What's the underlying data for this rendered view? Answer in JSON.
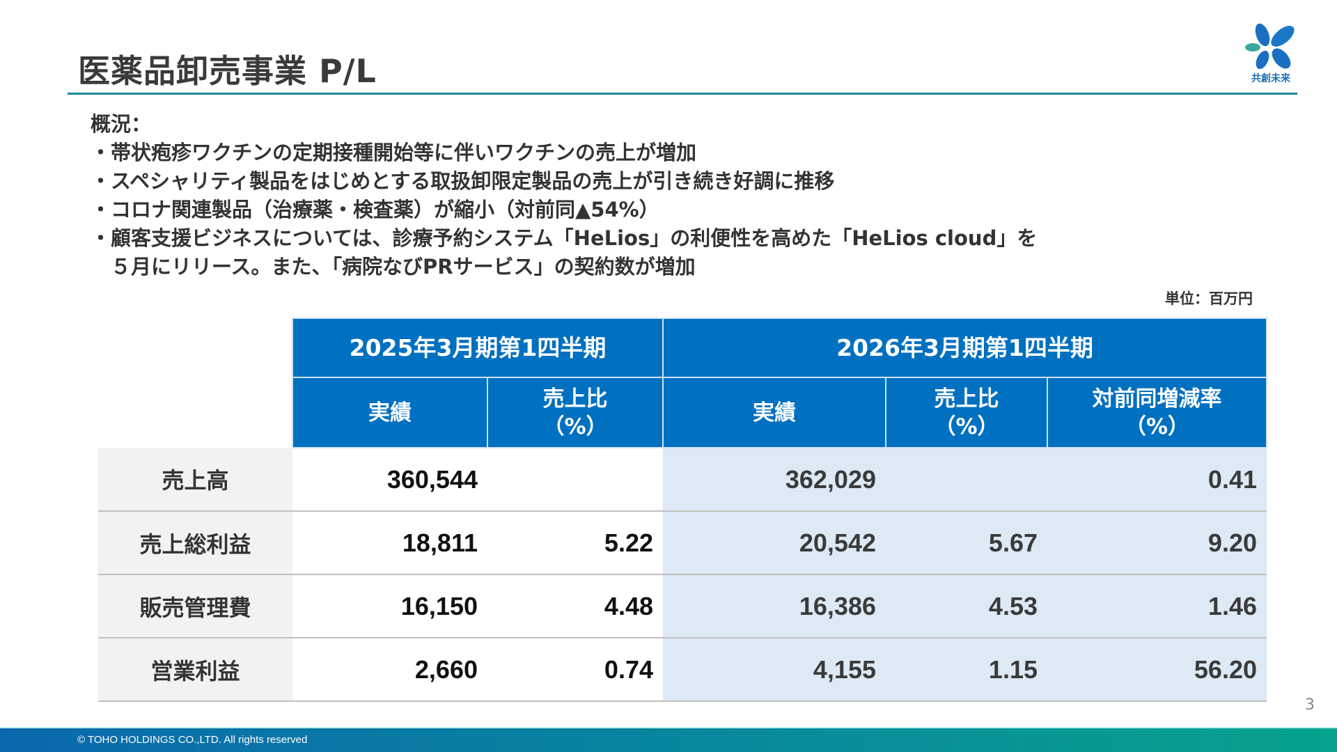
{
  "header": {
    "title": "医薬品卸売事業 P/L",
    "logo_text": "共創未来"
  },
  "overview": {
    "heading": "概況：",
    "lines": [
      "・帯状疱疹ワクチンの定期接種開始等に伴いワクチンの売上が増加",
      "・スペシャリティ製品をはじめとする取扱卸限定製品の売上が引き続き好調に推移",
      "・コロナ関連製品（治療薬・検査薬）が縮小（対前同▲54%）",
      "・顧客支援ビジネスについては、診療予約システム「HeLios」の利便性を高めた「HeLios cloud」を",
      "　５月にリリース。また、「病院なびPRサービス」の契約数が増加"
    ]
  },
  "unit": "単位：百万円",
  "table": {
    "periods": [
      "2025年3月期第1四半期",
      "2026年3月期第1四半期"
    ],
    "columns": [
      "実績",
      "売上比\n（%）",
      "実績",
      "売上比\n（%）",
      "対前同増減率\n（%）"
    ],
    "rows": [
      {
        "label": "売上高",
        "values": [
          "360,544",
          "",
          "362,029",
          "",
          "0.41"
        ]
      },
      {
        "label": "売上総利益",
        "values": [
          "18,811",
          "5.22",
          "20,542",
          "5.67",
          "9.20"
        ]
      },
      {
        "label": "販売管理費",
        "values": [
          "16,150",
          "4.48",
          "16,386",
          "4.53",
          "1.46"
        ]
      },
      {
        "label": "営業利益",
        "values": [
          "2,660",
          "0.74",
          "4,155",
          "1.15",
          "56.20"
        ]
      }
    ]
  },
  "page_number": "3",
  "footer": {
    "copyright": "© TOHO HOLDINGS CO.,LTD. All rights reserved"
  },
  "colors": {
    "header_blue": "#0070c0",
    "current_period_bg": "#dde9f5",
    "rule": "#1a8c9c"
  }
}
